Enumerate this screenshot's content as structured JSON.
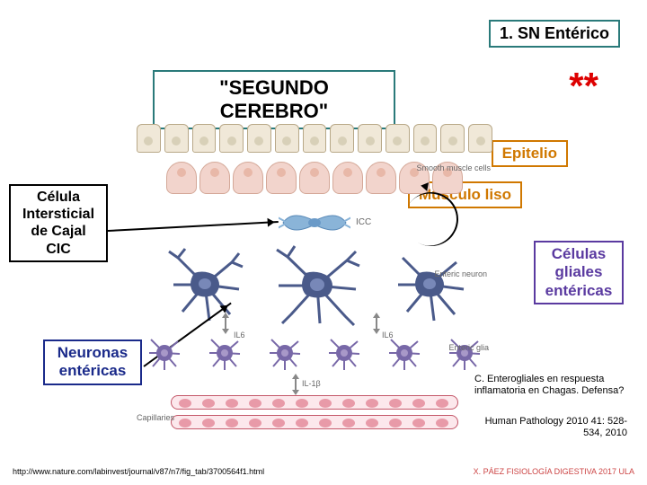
{
  "header": {
    "title": "1. SN Entérico",
    "subtitle": "\"SEGUNDO CEREBRO\"",
    "asterisk": "**"
  },
  "labels": {
    "epitelio": "Epitelio",
    "musculo": "Músculo liso",
    "cic": "Célula Intersticial de Cajal CIC",
    "gliales": "Células gliales entéricas",
    "neuronas": "Neuronas entéricas",
    "smooth": "Smooth muscle cells",
    "icc": "ICC",
    "enteric_neuron": "Enteric neuron",
    "enteric_glia": "Enteric glia",
    "il6": "IL6",
    "il1b": "IL-1β",
    "capillaries": "Capillaries"
  },
  "notes": {
    "n1": "C. Enterogliales en respuesta inflamatoria en Chagas. Defensa?",
    "n2": "Human Pathology 2010 41: 528-534, 2010"
  },
  "footer": {
    "url": "http://www.nature.com/labinvest/journal/v87/n7/fig_tab/3700564f1.html",
    "credit": "X. PÁEZ  FISIOLOGÍA DIGESTIVA 2017 ULA"
  },
  "colors": {
    "teal": "#2a7a7a",
    "orange": "#d07800",
    "purple": "#5a3aa0",
    "blue": "#1a2a8a",
    "red": "#d00000",
    "icc_fill": "#8ab4d8",
    "neuron_fill": "#4a5a8a",
    "glia_fill": "#7868a8"
  },
  "diagram": {
    "epithelium_cells": 13,
    "smooth_muscle_cells": 9,
    "glia_cells": 6,
    "capillary_cells": 12
  }
}
